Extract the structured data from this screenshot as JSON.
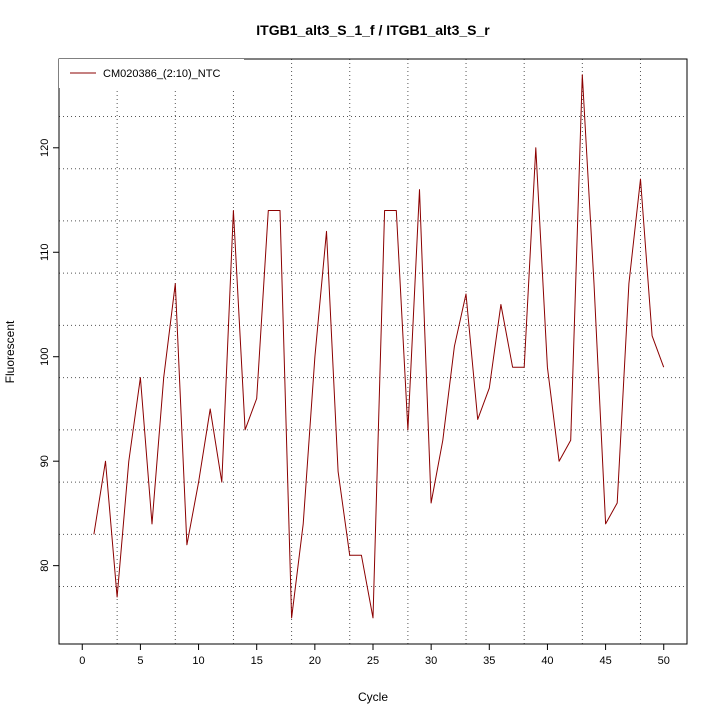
{
  "chart_data": {
    "type": "line",
    "title": "ITGB1_alt3_S_1_f / ITGB1_alt3_S_r",
    "xlabel": "Cycle",
    "ylabel": "Fluorescent",
    "xlim": [
      -2,
      52
    ],
    "ylim": [
      72.5,
      128.5
    ],
    "x_ticks": [
      0,
      5,
      10,
      15,
      20,
      25,
      30,
      35,
      40,
      45,
      50
    ],
    "y_ticks": [
      80,
      90,
      100,
      110,
      120
    ],
    "x_grid": [
      3,
      8,
      13,
      18,
      23,
      28,
      33,
      38,
      43,
      48
    ],
    "y_grid": [
      78,
      83,
      88,
      93,
      98,
      103,
      108,
      113,
      118,
      123
    ],
    "grid": true,
    "legend_position": "top-left",
    "series": [
      {
        "name": "CM020386_(2:10)_NTC",
        "color": "#8b0000",
        "x": [
          1,
          2,
          3,
          4,
          5,
          6,
          7,
          8,
          9,
          10,
          11,
          12,
          13,
          14,
          15,
          16,
          17,
          18,
          19,
          20,
          21,
          22,
          23,
          24,
          25,
          26,
          27,
          28,
          29,
          30,
          31,
          32,
          33,
          34,
          35,
          36,
          37,
          38,
          39,
          40,
          41,
          42,
          43,
          44,
          45,
          46,
          47,
          48,
          49,
          50
        ],
        "y": [
          83,
          90,
          77,
          90,
          98,
          84,
          98,
          107,
          82,
          88,
          95,
          88,
          114,
          93,
          96,
          114,
          114,
          75,
          84,
          100,
          112,
          89,
          81,
          81,
          75,
          114,
          114,
          93,
          116,
          86,
          92,
          101,
          106,
          94,
          97,
          105,
          99,
          99,
          120,
          99,
          90,
          92,
          127,
          107,
          84,
          86,
          107,
          117,
          102,
          99
        ]
      }
    ]
  }
}
